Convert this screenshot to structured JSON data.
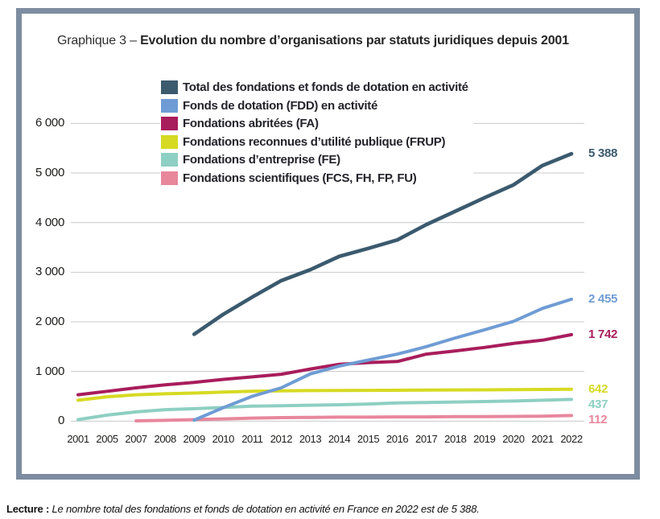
{
  "card": {
    "border_color": "#7d8ca0",
    "background": "#ffffff"
  },
  "title": {
    "prefix": "Graphique 3 – ",
    "main": "Evolution du nombre d’organisations par statuts juridiques depuis 2001"
  },
  "footer": {
    "label": "Lecture :",
    "text": " Le nombre total des fondations et fonds de dotation en activité en France en 2022 est de 5 388."
  },
  "chart_data": {
    "type": "line",
    "title": "Evolution du nombre d’organisations par statuts juridiques depuis 2001",
    "categories": [
      "2001",
      "2005",
      "2007",
      "2008",
      "2009",
      "2010",
      "2011",
      "2012",
      "2013",
      "2014",
      "2015",
      "2016",
      "2017",
      "2018",
      "2019",
      "2020",
      "2021",
      "2022"
    ],
    "ylim": [
      0,
      6000
    ],
    "yticks": [
      0,
      1000,
      2000,
      3000,
      4000,
      5000,
      6000
    ],
    "ytick_labels": [
      "0",
      "1 000",
      "2 000",
      "3 000",
      "4 000",
      "5 000",
      "6 000"
    ],
    "grid": true,
    "gridline_color": "#c9c9c9",
    "legend_position": "top-left-inside",
    "series": [
      {
        "name": "Total des fondations et fonds de dotation en activité",
        "color": "#3b5a6e",
        "end_label": "5 388",
        "values": [
          null,
          null,
          null,
          null,
          1750,
          2150,
          2500,
          2830,
          3050,
          3320,
          3480,
          3650,
          3960,
          4230,
          4500,
          4760,
          5150,
          5388
        ]
      },
      {
        "name": "Fonds de dotation (FDD) en activité",
        "color": "#6f9cd4",
        "end_label": "2 455",
        "values": [
          null,
          null,
          null,
          null,
          20,
          270,
          500,
          670,
          950,
          1110,
          1230,
          1350,
          1500,
          1675,
          1840,
          2010,
          2270,
          2455
        ]
      },
      {
        "name": "Fondations abritées (FA)",
        "color": "#a81d5c",
        "end_label": "1 742",
        "values": [
          530,
          600,
          670,
          730,
          780,
          840,
          890,
          945,
          1050,
          1145,
          1180,
          1200,
          1350,
          1415,
          1485,
          1565,
          1630,
          1742
        ]
      },
      {
        "name": "Fondations reconnues d’utilité publique (FRUP)",
        "color": "#d6da22",
        "end_label": "642",
        "values": [
          420,
          490,
          530,
          550,
          565,
          585,
          600,
          610,
          615,
          618,
          620,
          622,
          625,
          628,
          630,
          634,
          638,
          642
        ]
      },
      {
        "name": "Fondations d’entreprise (FE)",
        "color": "#8ecfc3",
        "end_label": "437",
        "values": [
          30,
          120,
          185,
          230,
          250,
          275,
          300,
          310,
          320,
          330,
          345,
          365,
          375,
          385,
          395,
          405,
          420,
          437
        ]
      },
      {
        "name": "Fondations scientifiques (FCS, FH, FP, FU)",
        "color": "#e8879c",
        "end_label": "112",
        "values": [
          null,
          null,
          5,
          15,
          30,
          45,
          60,
          70,
          75,
          80,
          80,
          85,
          85,
          90,
          90,
          95,
          100,
          112
        ]
      }
    ]
  }
}
